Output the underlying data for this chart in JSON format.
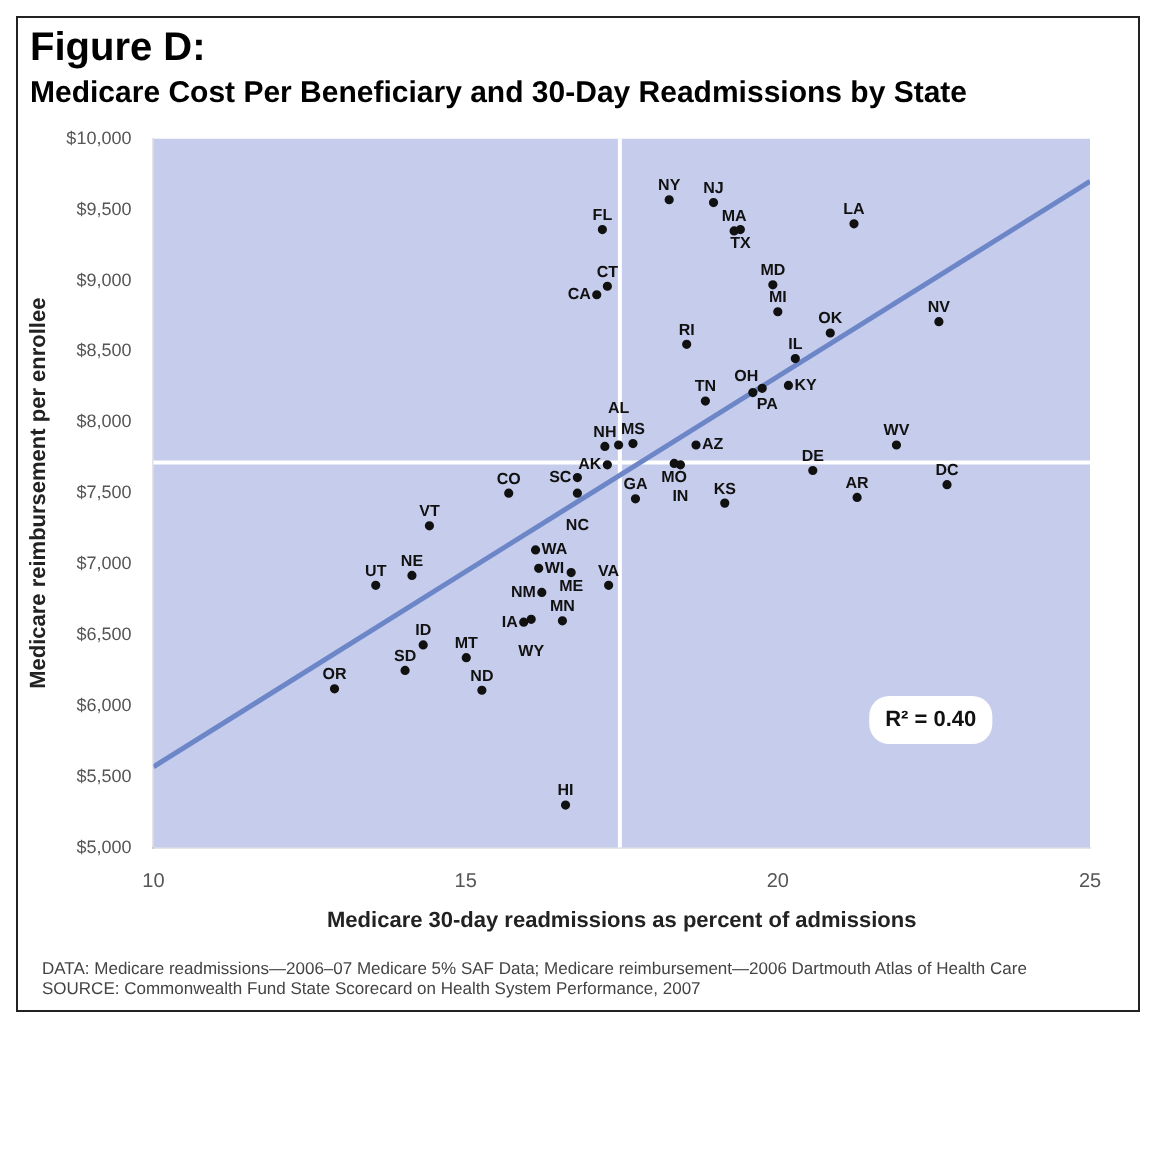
{
  "chart_data": {
    "type": "scatter",
    "title": "Figure D:",
    "subtitle": "Medicare Cost Per Beneficiary and 30-Day Readmissions by State",
    "xlabel": "Medicare 30-day readmissions as percent of admissions",
    "ylabel": "Medicare reimbursement per enrollee",
    "xlim": [
      10,
      25
    ],
    "xticks": [
      10,
      15,
      20,
      25
    ],
    "ylim": [
      5000,
      10000
    ],
    "yticks": [
      {
        "value": 5000,
        "label": "$5,000"
      },
      {
        "value": 5500,
        "label": "$5,500"
      },
      {
        "value": 6000,
        "label": "$6,000"
      },
      {
        "value": 6500,
        "label": "$6,500"
      },
      {
        "value": 7000,
        "label": "$7,000"
      },
      {
        "value": 7500,
        "label": "$7,500"
      },
      {
        "value": 8000,
        "label": "$8,000"
      },
      {
        "value": 8500,
        "label": "$8,500"
      },
      {
        "value": 9000,
        "label": "$9,000"
      },
      {
        "value": 9500,
        "label": "$9,500"
      },
      {
        "value": 10000,
        "label": "$10,000"
      }
    ],
    "grid": false,
    "series": [
      {
        "type": "scatter",
        "marker": "circle",
        "color": "#111111",
        "x": [
          18.26,
          18.97,
          19.3,
          19.4,
          21.22,
          17.19,
          17.27,
          17.1,
          19.92,
          20.0,
          20.84,
          22.58,
          18.54,
          20.28,
          19.75,
          19.6,
          20.17,
          18.84,
          21.9,
          18.69,
          17.23,
          17.45,
          17.68,
          18.34,
          18.44,
          17.27,
          17.72,
          19.15,
          20.56,
          21.27,
          22.71,
          17.29,
          16.79,
          16.79,
          15.69,
          14.42,
          16.12,
          16.17,
          16.69,
          16.22,
          16.55,
          15.93,
          16.05,
          13.56,
          14.14,
          14.32,
          14.03,
          15.01,
          15.26,
          12.9,
          16.6
        ],
        "values": [
          9570,
          9550,
          9350,
          9360,
          9400,
          9360,
          8960,
          8900,
          8970,
          8780,
          8630,
          8710,
          8550,
          8450,
          8240,
          8210,
          8260,
          8150,
          7840,
          7840,
          7830,
          7840,
          7850,
          7710,
          7700,
          7700,
          7460,
          7430,
          7660,
          7470,
          7560,
          6850,
          7610,
          7500,
          7500,
          7270,
          7100,
          6970,
          6940,
          6800,
          6600,
          6590,
          6610,
          6850,
          6920,
          6430,
          6250,
          6340,
          6110,
          6120,
          5300
        ],
        "value_labels": [
          "NY",
          "NJ",
          "MA",
          "TX",
          "LA",
          "FL",
          "CT",
          "CA",
          "MD",
          "MI",
          "OK",
          "NV",
          "RI",
          "IL",
          "OH",
          "PA",
          "KY",
          "TN",
          "WV",
          "AZ",
          "NH",
          "AL",
          "MS",
          "MO",
          "IN",
          "AK",
          "GA",
          "KS",
          "DE",
          "AR",
          "DC",
          "VA",
          "SC",
          "NC",
          "CO",
          "VT",
          "WA",
          "WI",
          "ME",
          "NM",
          "MN",
          "IA",
          "WY",
          "UT",
          "NE",
          "ID",
          "SD",
          "MT",
          "ND",
          "OR",
          "HI"
        ]
      },
      {
        "type": "line",
        "marker": "none",
        "color": "#6d86c8",
        "x": [
          10,
          25
        ],
        "values": [
          5570,
          9700
        ]
      }
    ],
    "ref_lines": [
      {
        "axis": "x",
        "value": 17.47,
        "color": "#ffffff"
      },
      {
        "axis": "y",
        "value": 7716,
        "color": "#ffffff"
      }
    ],
    "annotations": [
      "R² = 0.40",
      "DATA: Medicare readmissions—2006–07 Medicare 5% SAF Data; Medicare reimbursement—2006 Dartmouth Atlas of Health Care",
      "SOURCE: Commonwealth Fund State Scorecard on Health System Performance, 2007"
    ]
  }
}
